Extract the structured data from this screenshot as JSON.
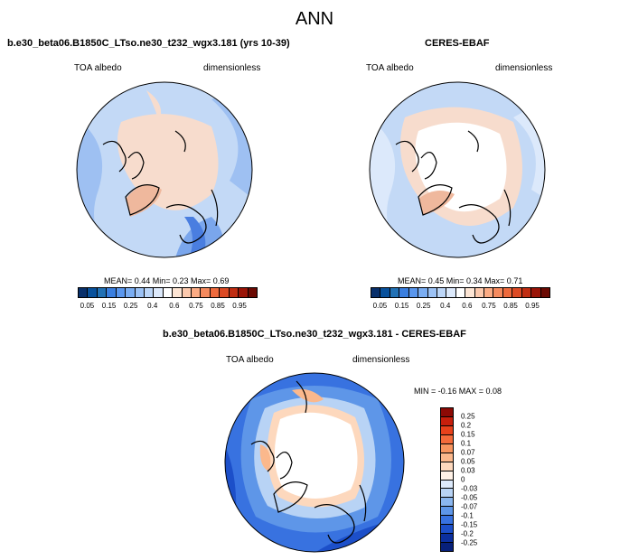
{
  "season": "ANN",
  "panels": [
    {
      "title": "b.e30_beta06.B1850C_LTso.ne30_t232_wgx3.181 (yrs 10-39)",
      "variable": "TOA albedo",
      "units": "dimensionless",
      "stats": "MEAN=  0.44  Min=   0.23  Max=   0.69"
    },
    {
      "title": "CERES-EBAF",
      "variable": "TOA albedo",
      "units": "dimensionless",
      "stats": "MEAN=  0.45  Min=   0.34  Max=   0.71"
    },
    {
      "title": "b.e30_beta06.B1850C_LTso.ne30_t232_wgx3.181 - CERES-EBAF",
      "variable": "TOA albedo",
      "units": "dimensionless",
      "stats": "MIN = -0.16 MAX =  0.08"
    }
  ],
  "colorbar_main": {
    "labels": [
      "0.05",
      "0.15",
      "0.25",
      "0.4",
      "0.6",
      "0.75",
      "0.85",
      "0.95"
    ],
    "colors": [
      "#08306b",
      "#08519c",
      "#2171b5",
      "#3a7fe0",
      "#5a97ee",
      "#7aadf2",
      "#9cc2f5",
      "#bcd6f8",
      "#dce9fb",
      "#ffffff",
      "#fde5d4",
      "#fcc9ad",
      "#fbab84",
      "#f58a5e",
      "#ee6a3d",
      "#dc4a24",
      "#c02d12",
      "#9a1407",
      "#6b0a03"
    ]
  },
  "colorbar_diff": {
    "labels": [
      "0.25",
      "0.2",
      "0.15",
      "0.1",
      "0.07",
      "0.05",
      "0.03",
      "0",
      "-0.03",
      "-0.05",
      "-0.07",
      "-0.1",
      "-0.15",
      "-0.2",
      "-0.25"
    ],
    "colors": [
      "#8c0a05",
      "#c61f0c",
      "#e7411b",
      "#f46a3a",
      "#f8955f",
      "#fbb88c",
      "#fdd8bd",
      "#fff1e6",
      "#dce9fb",
      "#b8d3f5",
      "#8ab6ef",
      "#5e96e8",
      "#3872e0",
      "#1c4fc9",
      "#0b2f9e",
      "#07207a"
    ]
  }
}
